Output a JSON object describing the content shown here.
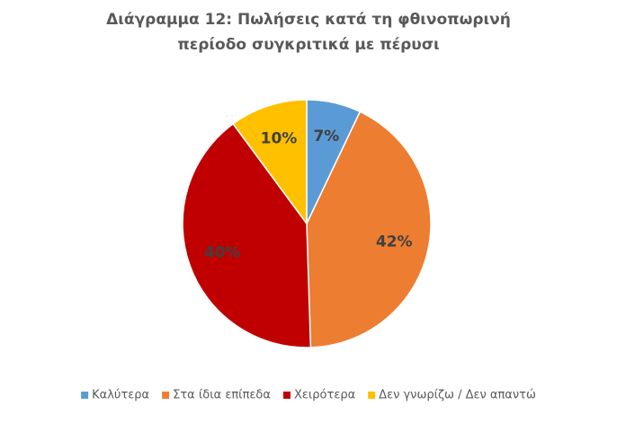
{
  "chart_data": {
    "type": "pie",
    "title": [
      "Διάγραμμα 12: Πωλήσεις κατά τη φθινοπωρινή",
      "περίοδο συγκριτικά με πέρυσι"
    ],
    "categories": [
      "Καλύτερα",
      "Στα ίδια επίπεδα",
      "Χειρότερα",
      "Δεν γνωρίζω / Δεν απαντώ"
    ],
    "values": [
      7,
      42,
      40,
      10
    ],
    "value_labels": [
      "7%",
      "42%",
      "40%",
      "10%"
    ],
    "colors": [
      "#5b9bd5",
      "#ed7d31",
      "#c00000",
      "#ffc000"
    ],
    "legend": "bottom"
  }
}
